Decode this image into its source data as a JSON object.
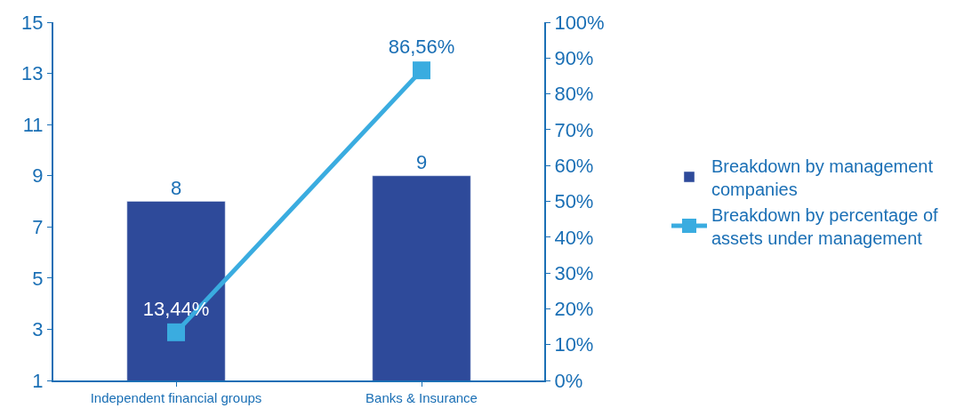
{
  "chart_data": {
    "type": "bar",
    "categories": [
      "Independent financial groups",
      "Banks & Insurance"
    ],
    "series": [
      {
        "name": "Breakdown by management companies",
        "color": "#2e4a9a",
        "values": [
          8,
          9
        ],
        "value_labels": [
          "8",
          "9"
        ]
      },
      {
        "name": "Breakdown by percentage of assets under management",
        "type": "line",
        "axis": "y2",
        "color": "#3aace0",
        "marker": "square",
        "values": [
          13.44,
          86.56
        ],
        "value_labels": [
          "13,44%",
          "86,56%"
        ]
      }
    ],
    "ylim": [
      1,
      15
    ],
    "yticks": [
      1,
      3,
      5,
      7,
      9,
      11,
      13,
      15
    ],
    "y2lim": [
      0,
      100
    ],
    "y2ticks": [
      {
        "value": 0,
        "label": "0%"
      },
      {
        "value": 10,
        "label": "10%"
      },
      {
        "value": 20,
        "label": "20%"
      },
      {
        "value": 30,
        "label": "30%"
      },
      {
        "value": 40,
        "label": "40%"
      },
      {
        "value": 50,
        "label": "50%"
      },
      {
        "value": 60,
        "label": "60%"
      },
      {
        "value": 70,
        "label": "70%"
      },
      {
        "value": 80,
        "label": "80%"
      },
      {
        "value": 90,
        "label": "90%"
      },
      {
        "value": 100,
        "label": "100%"
      }
    ],
    "legend": "right"
  }
}
